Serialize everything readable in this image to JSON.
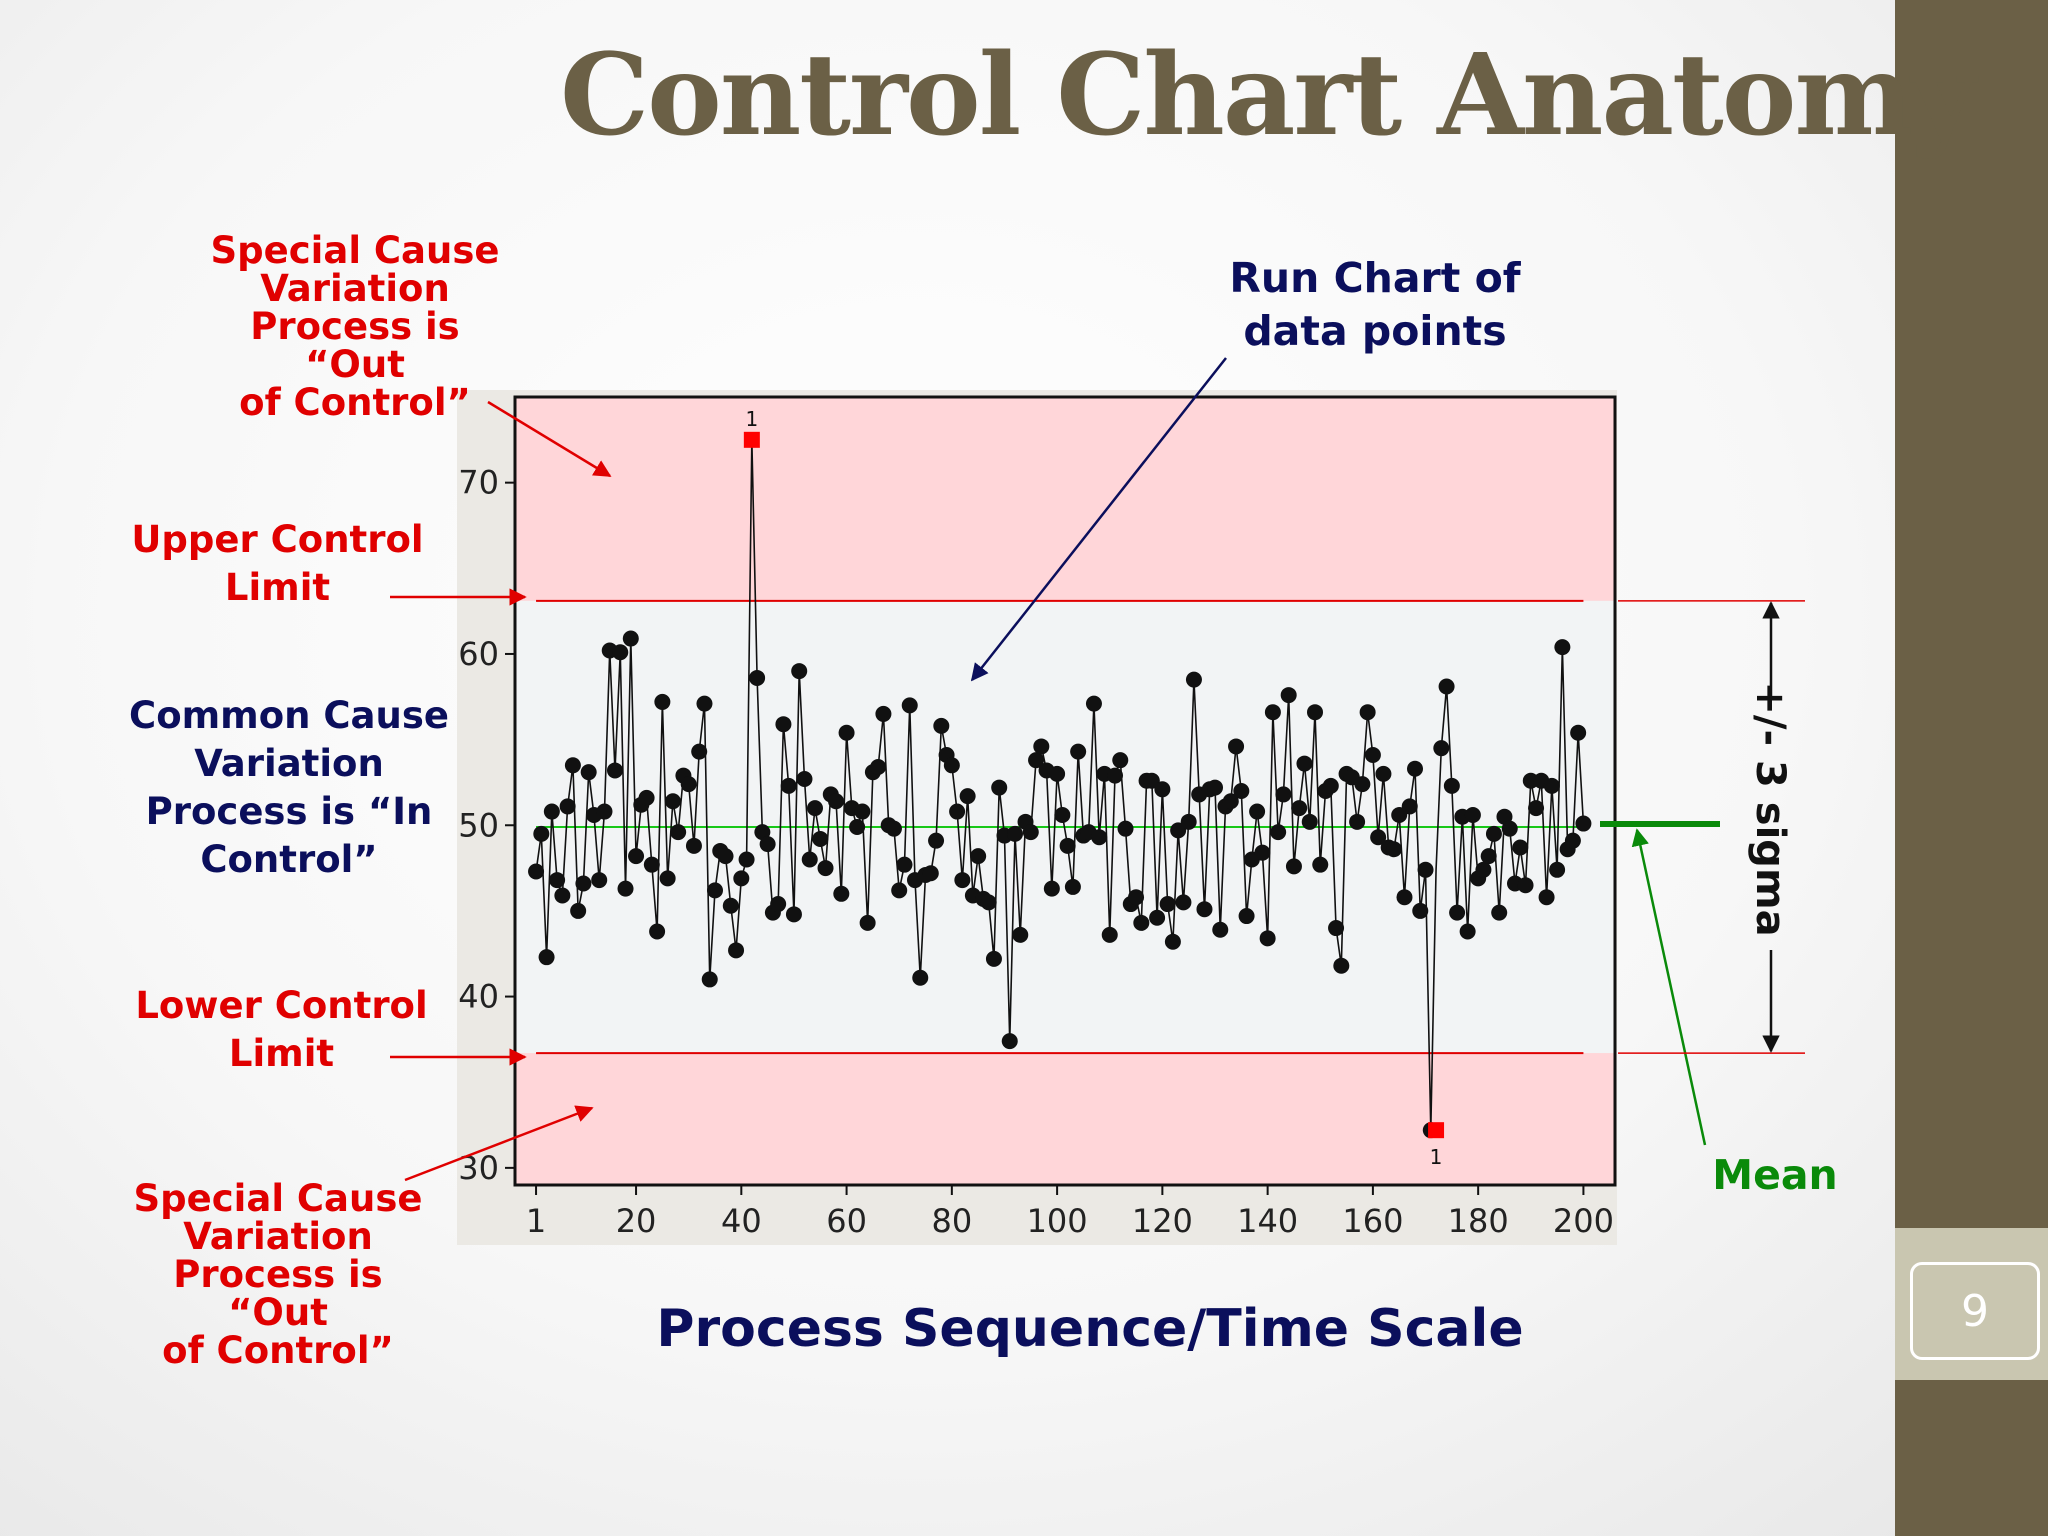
{
  "slide": {
    "title": "Control Chart Anatomy",
    "page_number": "9"
  },
  "annotations": {
    "special_cause_top": "Special Cause\nVariation\nProcess is “Out\nof Control”",
    "run_chart": "Run Chart of\ndata points",
    "ucl": "Upper Control\nLimit",
    "common_cause": "Common Cause\nVariation\nProcess is “In\nControl”",
    "lcl": "Lower Control\nLimit",
    "special_cause_bottom": "Special Cause\nVariation\nProcess is “Out\nof Control”",
    "sigma": "+/- 3 sigma",
    "mean": "Mean",
    "x_axis_caption": "Process Sequence/Time Scale"
  },
  "colors": {
    "out_of_control_band": "#ffd6d9",
    "in_control_band": "#f2f4f5",
    "limit_line": "#e00000",
    "mean_line": "#18c818",
    "points": "#111111",
    "flagged_points": "#ff0000",
    "red_text": "#e00000",
    "navy_text": "#0b0f5c",
    "green_text": "#0a8a0a"
  },
  "chart_data": {
    "type": "line",
    "markers": true,
    "xlabel": "",
    "ylabel": "",
    "xlim": [
      -3,
      206
    ],
    "ylim": [
      29,
      75
    ],
    "x_ticks": [
      1,
      20,
      40,
      60,
      80,
      100,
      120,
      140,
      160,
      180,
      200
    ],
    "y_ticks": [
      30,
      40,
      50,
      60,
      70
    ],
    "ucl": 63.1,
    "lcl": 36.7,
    "mean": 49.9,
    "flag_label": "1",
    "flagged_points": [
      {
        "x": 42,
        "y": 72.5
      },
      {
        "x": 172,
        "y": 32.2
      }
    ],
    "series": [
      {
        "x": [
          1,
          2,
          3,
          4,
          5,
          6,
          7,
          8,
          9,
          10,
          11,
          12,
          13,
          14,
          15,
          16,
          17,
          18,
          19,
          20,
          21,
          22,
          23,
          24,
          25,
          26,
          27,
          28,
          29,
          30,
          31,
          32,
          33,
          34,
          35,
          36,
          37,
          38,
          39,
          40,
          41,
          42,
          43,
          44,
          45,
          46,
          47,
          48,
          49,
          50,
          51,
          52,
          53,
          54,
          55,
          56,
          57,
          58,
          59,
          60,
          61,
          62,
          63,
          64,
          65,
          66,
          67,
          68,
          69,
          70,
          71,
          72,
          73,
          74,
          75,
          76,
          77,
          78,
          79,
          80,
          81,
          82,
          83,
          84,
          85,
          86,
          87,
          88,
          89,
          90,
          91,
          92,
          93,
          94,
          95,
          96,
          97,
          98,
          99,
          100,
          101,
          102,
          103,
          104,
          105,
          106,
          107,
          108,
          109,
          110,
          111,
          112,
          113,
          114,
          115,
          116,
          117,
          118,
          119,
          120,
          121,
          122,
          123,
          124,
          125,
          126,
          127,
          128,
          129,
          130,
          131,
          132,
          133,
          134,
          135,
          136,
          137,
          138,
          139,
          140,
          141,
          142,
          143,
          144,
          145,
          146,
          147,
          148,
          149,
          150,
          151,
          152,
          153,
          154,
          155,
          156,
          157,
          158,
          159,
          160,
          161,
          162,
          163,
          164,
          165,
          166,
          167,
          168,
          169,
          170,
          171,
          172,
          173,
          174,
          175,
          176,
          177,
          178,
          179,
          180,
          181,
          182,
          183,
          184,
          185,
          186,
          187,
          188,
          189,
          190,
          191,
          192,
          193,
          194,
          195,
          196,
          197,
          198,
          199,
          200
        ],
        "y": [
          47.3,
          49.5,
          42.3,
          50.8,
          46.8,
          45.9,
          51.1,
          53.5,
          45.0,
          46.6,
          53.1,
          50.6,
          46.8,
          50.8,
          60.2,
          53.2,
          60.1,
          46.3,
          60.9,
          48.2,
          51.2,
          51.6,
          47.7,
          43.8,
          57.2,
          46.9,
          51.4,
          49.6,
          52.9,
          52.4,
          48.8,
          54.3,
          57.1,
          41.0,
          46.2,
          48.5,
          48.2,
          45.3,
          42.7,
          46.9,
          48.0,
          72.5,
          58.6,
          49.6,
          48.9,
          44.9,
          45.4,
          55.9,
          52.3,
          44.8,
          59.0,
          52.7,
          48.0,
          51.0,
          49.2,
          47.5,
          51.8,
          51.4,
          46.0,
          55.4,
          51.0,
          49.9,
          50.8,
          44.3,
          53.1,
          53.4,
          56.5,
          50.0,
          49.8,
          46.2,
          47.7,
          57.0,
          46.8,
          41.1,
          47.1,
          47.2,
          49.1,
          55.8,
          54.1,
          53.5,
          50.8,
          46.8,
          51.7,
          45.9,
          48.2,
          45.7,
          45.5,
          42.2,
          52.2,
          49.4,
          37.4,
          49.5,
          43.6,
          50.2,
          49.6,
          53.8,
          54.6,
          53.2,
          46.3,
          53.0,
          50.6,
          48.8,
          46.4,
          54.3,
          49.4,
          49.6,
          57.1,
          49.3,
          53.0,
          43.6,
          52.9,
          53.8,
          49.8,
          45.4,
          45.8,
          44.3,
          52.6,
          52.6,
          44.6,
          52.1,
          45.4,
          43.2,
          49.7,
          45.5,
          50.2,
          58.5,
          51.8,
          45.1,
          52.1,
          52.2,
          43.9,
          51.1,
          51.4,
          54.6,
          52.0,
          44.7,
          48.0,
          50.8,
          48.4,
          43.4,
          56.6,
          49.6,
          51.8,
          57.6,
          47.6,
          51.0,
          53.6,
          50.2,
          56.6,
          47.7,
          52.0,
          52.3,
          44.0,
          41.8,
          53.0,
          52.8,
          50.2,
          52.4,
          56.6,
          54.1,
          49.3,
          53.0,
          48.7,
          48.6,
          50.6,
          45.8,
          51.1,
          53.3,
          45.0,
          47.4,
          32.2,
          47.4,
          54.5,
          58.1,
          52.3,
          44.9,
          50.5,
          43.8,
          50.6,
          46.9,
          47.4,
          48.2,
          49.5,
          44.9,
          50.5,
          49.8,
          46.6,
          48.7,
          46.5,
          52.6,
          51.0,
          52.6,
          45.8,
          52.3,
          47.4,
          60.4,
          48.6,
          49.1,
          55.4,
          50.1
        ]
      }
    ]
  }
}
